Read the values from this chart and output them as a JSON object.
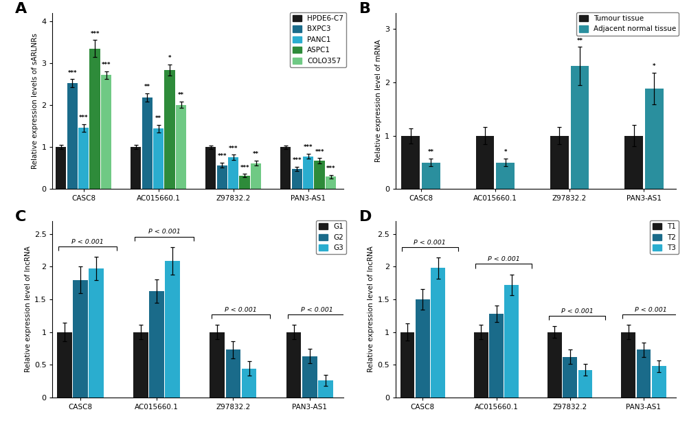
{
  "panel_A": {
    "title": "A",
    "ylabel": "Relative expression levels of sARLNRs",
    "genes": [
      "CASC8",
      "AC015660.1",
      "Z97832.2",
      "PAN3-AS1"
    ],
    "groups": [
      "HPDE6-C7",
      "BXPC3",
      "PANC1",
      "ASPC1",
      "COLO357"
    ],
    "colors": [
      "#1a1a1a",
      "#1a6b8a",
      "#2aadcf",
      "#2e8b3a",
      "#6fc984"
    ],
    "values": [
      [
        1.0,
        2.52,
        1.46,
        3.35,
        2.72
      ],
      [
        1.0,
        2.18,
        1.44,
        2.84,
        2.01
      ],
      [
        1.0,
        0.57,
        0.76,
        0.32,
        0.62
      ],
      [
        1.0,
        0.48,
        0.78,
        0.68,
        0.3
      ]
    ],
    "errors": [
      [
        0.05,
        0.1,
        0.09,
        0.2,
        0.09
      ],
      [
        0.05,
        0.1,
        0.09,
        0.13,
        0.08
      ],
      [
        0.04,
        0.06,
        0.06,
        0.04,
        0.06
      ],
      [
        0.04,
        0.05,
        0.06,
        0.06,
        0.04
      ]
    ],
    "significance": [
      [
        "",
        "***",
        "***",
        "***",
        "***"
      ],
      [
        "",
        "**",
        "**",
        "*",
        "**"
      ],
      [
        "",
        "***",
        "***",
        "***",
        "**"
      ],
      [
        "",
        "***",
        "***",
        "***",
        "***"
      ]
    ],
    "bracket_label": null,
    "ylim": [
      0,
      4.2
    ],
    "yticks": [
      0,
      1,
      2,
      3,
      4
    ]
  },
  "panel_B": {
    "title": "B",
    "ylabel": "Relative expression level of mRNA",
    "genes": [
      "CASC8",
      "AC015660.1",
      "Z97832.2",
      "PAN3-AS1"
    ],
    "groups": [
      "Tumour tissue",
      "Adjacent normal tissue"
    ],
    "colors": [
      "#1a1a1a",
      "#2a8f9e"
    ],
    "values": [
      [
        1.0,
        0.5
      ],
      [
        1.0,
        0.5
      ],
      [
        1.0,
        2.3
      ],
      [
        1.0,
        1.88
      ]
    ],
    "errors": [
      [
        0.14,
        0.07
      ],
      [
        0.16,
        0.07
      ],
      [
        0.16,
        0.36
      ],
      [
        0.2,
        0.3
      ]
    ],
    "significance": [
      [
        "",
        "**"
      ],
      [
        "",
        "*"
      ],
      [
        "",
        "**"
      ],
      [
        "",
        "*"
      ]
    ],
    "bracket_label": null,
    "ylim": [
      0,
      3.3
    ],
    "yticks": [
      0,
      1,
      2,
      3
    ]
  },
  "panel_C": {
    "title": "C",
    "ylabel": "Relative expression level of lncRNA",
    "genes": [
      "CASC8",
      "AC015660.1",
      "Z97832.2",
      "PAN3-AS1"
    ],
    "groups": [
      "G1",
      "G2",
      "G3"
    ],
    "colors": [
      "#1a1a1a",
      "#1a6b8a",
      "#2aadcf"
    ],
    "values": [
      [
        1.0,
        1.8,
        1.97
      ],
      [
        1.0,
        1.63,
        2.09
      ],
      [
        1.0,
        0.73,
        0.44
      ],
      [
        1.0,
        0.63,
        0.26
      ]
    ],
    "errors": [
      [
        0.14,
        0.2,
        0.18
      ],
      [
        0.11,
        0.18,
        0.21
      ],
      [
        0.11,
        0.13,
        0.11
      ],
      [
        0.11,
        0.11,
        0.08
      ]
    ],
    "significance": null,
    "bracket_label": "P < 0.001",
    "ylim": [
      0,
      2.7
    ],
    "yticks": [
      0.0,
      0.5,
      1.0,
      1.5,
      2.0,
      2.5
    ]
  },
  "panel_D": {
    "title": "D",
    "ylabel": "Relative expression level of lncRNA",
    "genes": [
      "CASC8",
      "AC015660.1",
      "Z97832.2",
      "PAN3-AS1"
    ],
    "groups": [
      "T1",
      "T2",
      "T3"
    ],
    "colors": [
      "#1a1a1a",
      "#1a6b8a",
      "#2aadcf"
    ],
    "values": [
      [
        1.0,
        1.5,
        1.98
      ],
      [
        1.0,
        1.28,
        1.72
      ],
      [
        1.0,
        0.62,
        0.42
      ],
      [
        1.0,
        0.73,
        0.48
      ]
    ],
    "errors": [
      [
        0.13,
        0.16,
        0.16
      ],
      [
        0.11,
        0.13,
        0.16
      ],
      [
        0.09,
        0.11,
        0.09
      ],
      [
        0.11,
        0.11,
        0.09
      ]
    ],
    "significance": null,
    "bracket_label": "P < 0.001",
    "ylim": [
      0,
      2.7
    ],
    "yticks": [
      0.0,
      0.5,
      1.0,
      1.5,
      2.0,
      2.5
    ]
  }
}
